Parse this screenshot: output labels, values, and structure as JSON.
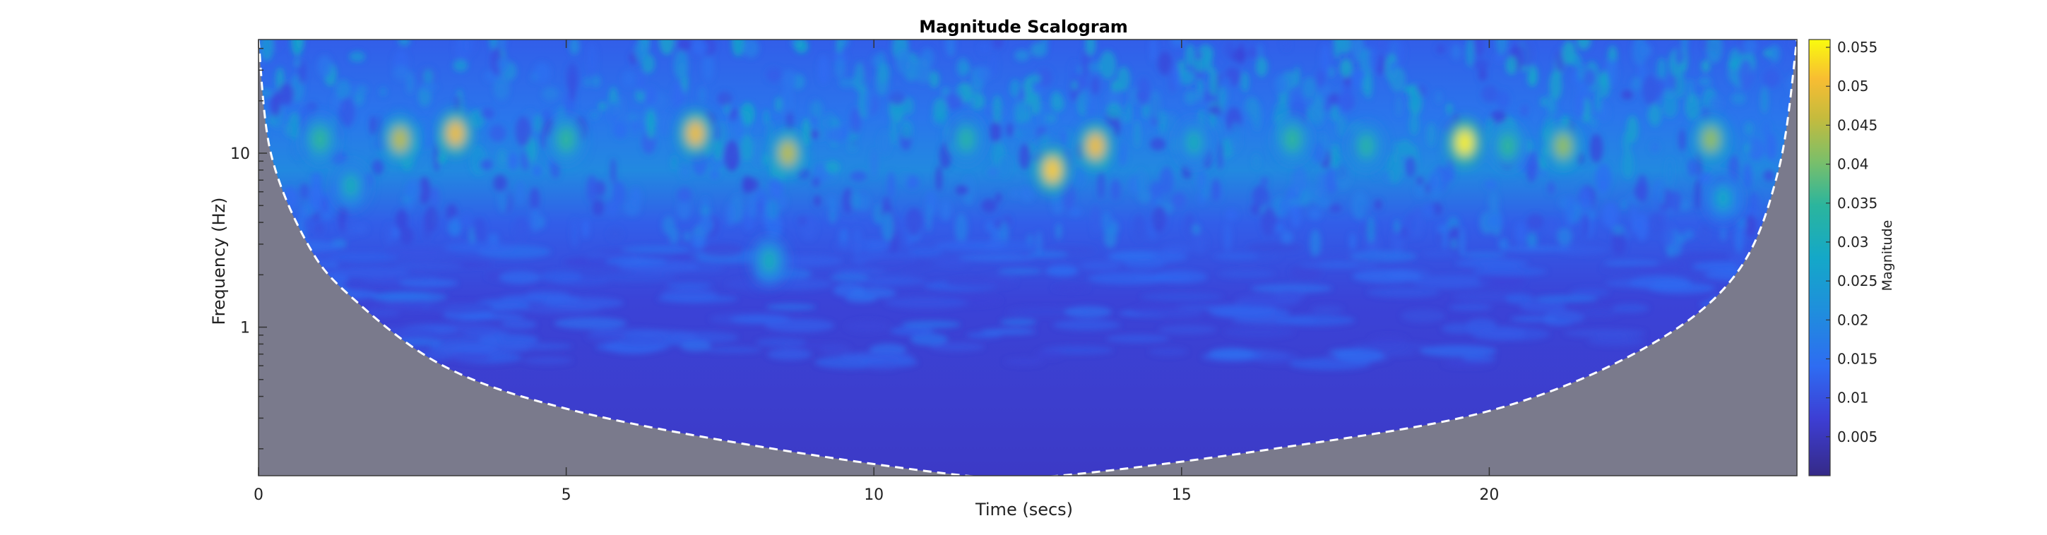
{
  "chart_data": {
    "type": "heatmap",
    "title": "Magnitude Scalogram",
    "xlabel": "Time (secs)",
    "ylabel": "Frequency (Hz)",
    "xlim": [
      0,
      25
    ],
    "ylim": [
      0.14,
      45
    ],
    "yscale": "log",
    "x_ticks": [
      0,
      5,
      10,
      15,
      20
    ],
    "y_ticks": [
      1,
      10
    ],
    "colorbar": {
      "label": "Magnitude",
      "range": [
        0,
        0.056
      ],
      "ticks": [
        0.005,
        0.01,
        0.015,
        0.02,
        0.025,
        0.03,
        0.035,
        0.04,
        0.045,
        0.05,
        0.055
      ],
      "colormap": "parula"
    },
    "cone_of_influence": {
      "style": "dashed white line",
      "shade_color": "#7a7a8c",
      "points": [
        {
          "t": 0.0,
          "f": 45
        },
        {
          "t": 0.2,
          "f": 10
        },
        {
          "t": 0.8,
          "f": 3.0
        },
        {
          "t": 1.5,
          "f": 1.5
        },
        {
          "t": 3.0,
          "f": 0.6
        },
        {
          "t": 5.0,
          "f": 0.34
        },
        {
          "t": 8.0,
          "f": 0.21
        },
        {
          "t": 11.5,
          "f": 0.14
        },
        {
          "t": 13.0,
          "f": 0.14
        },
        {
          "t": 16.5,
          "f": 0.2
        },
        {
          "t": 20.0,
          "f": 0.33
        },
        {
          "t": 22.5,
          "f": 0.75
        },
        {
          "t": 24.0,
          "f": 2.0
        },
        {
          "t": 24.7,
          "f": 8.0
        },
        {
          "t": 25.0,
          "f": 45
        }
      ]
    },
    "hotspots": [
      {
        "t": 2.3,
        "f": 12,
        "magnitude": 0.045
      },
      {
        "t": 3.2,
        "f": 13,
        "magnitude": 0.05
      },
      {
        "t": 7.1,
        "f": 13,
        "magnitude": 0.05
      },
      {
        "t": 8.6,
        "f": 10,
        "magnitude": 0.045
      },
      {
        "t": 12.9,
        "f": 8,
        "magnitude": 0.052
      },
      {
        "t": 13.6,
        "f": 11,
        "magnitude": 0.05
      },
      {
        "t": 19.6,
        "f": 11.5,
        "magnitude": 0.055
      },
      {
        "t": 21.2,
        "f": 11,
        "magnitude": 0.042
      },
      {
        "t": 23.6,
        "f": 12,
        "magnitude": 0.042
      },
      {
        "t": 1.0,
        "f": 12,
        "magnitude": 0.035
      },
      {
        "t": 5.0,
        "f": 12,
        "magnitude": 0.035
      },
      {
        "t": 8.3,
        "f": 2.4,
        "magnitude": 0.03
      },
      {
        "t": 11.5,
        "f": 12,
        "magnitude": 0.033
      },
      {
        "t": 16.8,
        "f": 12,
        "magnitude": 0.035
      },
      {
        "t": 18.0,
        "f": 11,
        "magnitude": 0.033
      },
      {
        "t": 20.3,
        "f": 11,
        "magnitude": 0.035
      },
      {
        "t": 15.2,
        "f": 11.5,
        "magnitude": 0.03
      },
      {
        "t": 1.5,
        "f": 6.5,
        "magnitude": 0.03
      },
      {
        "t": 23.8,
        "f": 5.5,
        "magnitude": 0.028
      }
    ]
  }
}
